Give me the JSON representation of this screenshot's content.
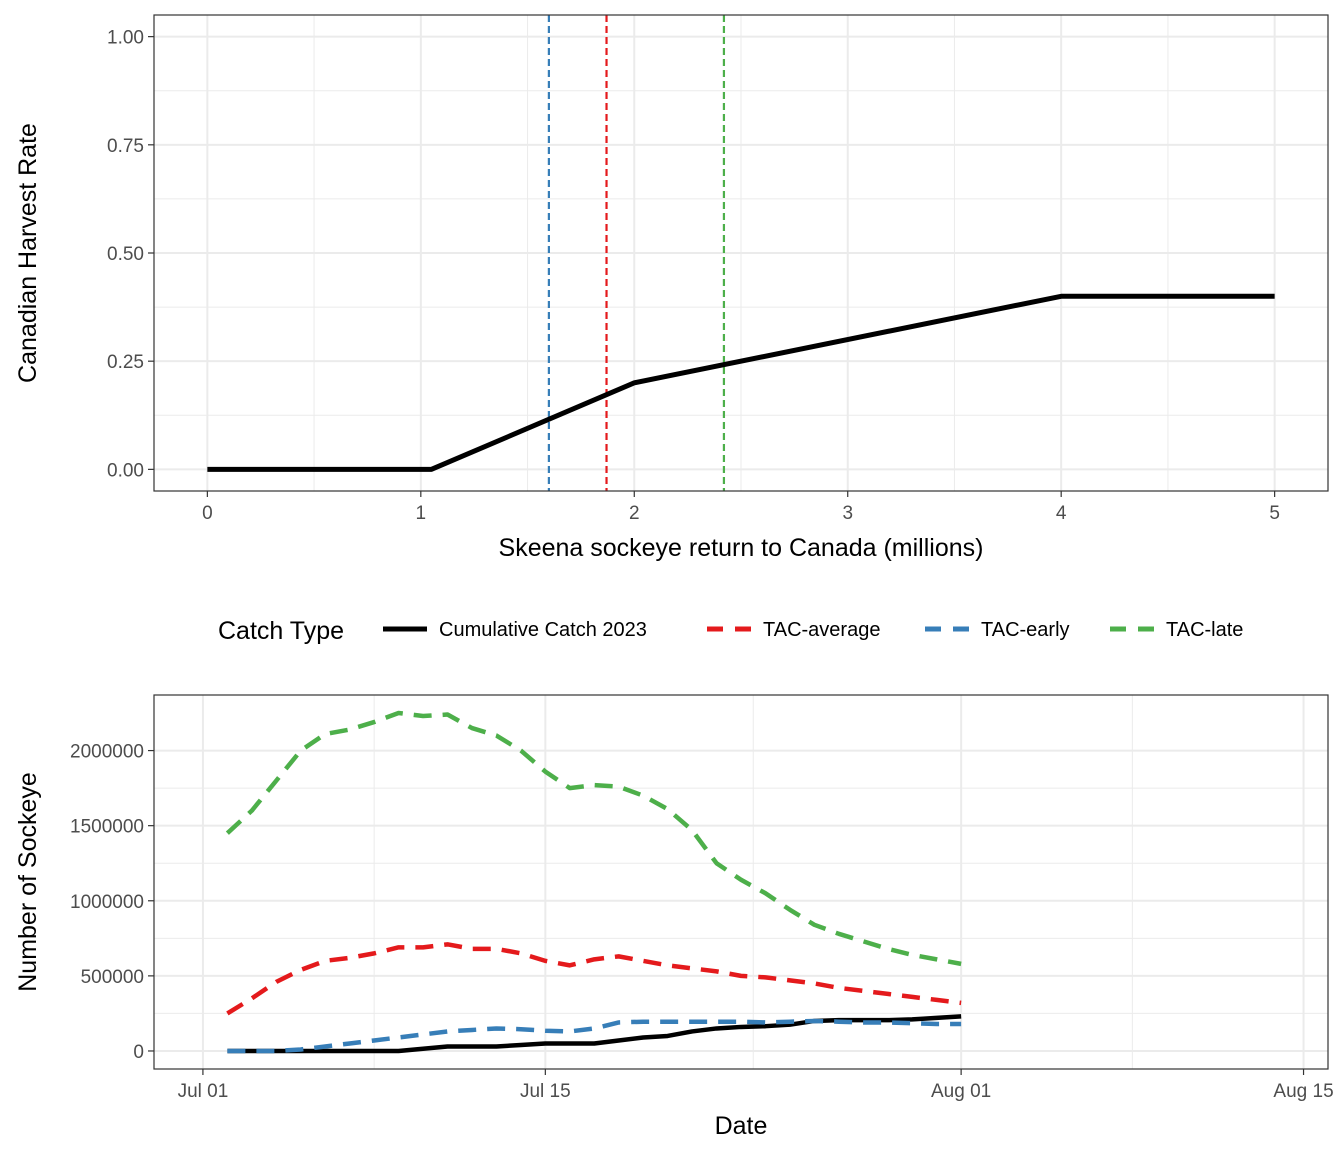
{
  "chart_data": [
    {
      "type": "line",
      "title": "",
      "xlabel": "Skeena sockeye return to Canada (millions)",
      "ylabel": "Canadian Harvest Rate",
      "xlim": [
        -0.25,
        5.25
      ],
      "ylim": [
        -0.05,
        1.05
      ],
      "x_ticks": [
        0,
        1,
        2,
        3,
        4,
        5
      ],
      "x_tick_labels": [
        "0",
        "1",
        "2",
        "3",
        "4",
        "5"
      ],
      "y_ticks": [
        0,
        0.25,
        0.5,
        0.75,
        1
      ],
      "y_tick_labels": [
        "0.00",
        "0.25",
        "0.50",
        "0.75",
        "1.00"
      ],
      "grid": true,
      "series": [
        {
          "color": "#000000",
          "x": [
            0,
            1.05,
            2,
            4,
            5
          ],
          "y": [
            0,
            0,
            0.2,
            0.4,
            0.4
          ]
        }
      ],
      "vlines": [
        {
          "x": 1.6,
          "color": "#377EB8"
        },
        {
          "x": 1.87,
          "color": "#E41A1C"
        },
        {
          "x": 2.42,
          "color": "#4DAF4A"
        }
      ]
    },
    {
      "type": "line",
      "title": "",
      "xlabel": "Date",
      "ylabel": "Number of Sockeye",
      "x_axis": "date",
      "xlim": [
        "2023-06-29",
        "2023-08-16"
      ],
      "ylim": [
        -120000,
        2370000
      ],
      "x_ticks": [
        "2023-07-01",
        "2023-07-15",
        "2023-08-01",
        "2023-08-15"
      ],
      "x_tick_labels": [
        "Jul 01",
        "Jul 15",
        "Aug 01",
        "Aug 15"
      ],
      "y_ticks": [
        0,
        500000,
        1000000,
        1500000,
        2000000
      ],
      "y_tick_labels": [
        "0",
        "500000",
        "1000000",
        "1500000",
        "2000000"
      ],
      "grid": true,
      "legend": {
        "title": "Catch Type",
        "placement": "top",
        "entries": [
          "Cumulative Catch 2023",
          "TAC-average",
          "TAC-early",
          "TAC-late"
        ]
      },
      "x": [
        "2023-07-02",
        "2023-07-03",
        "2023-07-04",
        "2023-07-05",
        "2023-07-06",
        "2023-07-07",
        "2023-07-08",
        "2023-07-09",
        "2023-07-10",
        "2023-07-11",
        "2023-07-12",
        "2023-07-13",
        "2023-07-14",
        "2023-07-15",
        "2023-07-16",
        "2023-07-17",
        "2023-07-18",
        "2023-07-19",
        "2023-07-20",
        "2023-07-21",
        "2023-07-22",
        "2023-07-23",
        "2023-07-24",
        "2023-07-25",
        "2023-07-26",
        "2023-07-27",
        "2023-07-28",
        "2023-07-29",
        "2023-07-30",
        "2023-07-31",
        "2023-08-01"
      ],
      "series": [
        {
          "name": "Cumulative Catch 2023",
          "color": "#000000",
          "dashed": false,
          "values": [
            0,
            0,
            0,
            0,
            0,
            0,
            0,
            0,
            15000,
            30000,
            30000,
            30000,
            40000,
            50000,
            50000,
            50000,
            70000,
            90000,
            100000,
            130000,
            150000,
            160000,
            165000,
            175000,
            200000,
            205000,
            205000,
            205000,
            210000,
            220000,
            230000
          ]
        },
        {
          "name": "TAC-average",
          "color": "#E41A1C",
          "dashed": true,
          "values": [
            250000,
            350000,
            460000,
            540000,
            600000,
            620000,
            650000,
            690000,
            690000,
            710000,
            680000,
            680000,
            650000,
            600000,
            570000,
            610000,
            630000,
            600000,
            570000,
            550000,
            530000,
            500000,
            490000,
            470000,
            450000,
            420000,
            400000,
            380000,
            360000,
            340000,
            320000
          ]
        },
        {
          "name": "TAC-early",
          "color": "#377EB8",
          "dashed": true,
          "values": [
            0,
            0,
            0,
            10000,
            30000,
            50000,
            70000,
            90000,
            110000,
            130000,
            140000,
            150000,
            145000,
            135000,
            130000,
            150000,
            190000,
            195000,
            195000,
            195000,
            195000,
            195000,
            190000,
            195000,
            200000,
            195000,
            190000,
            190000,
            185000,
            180000,
            180000
          ]
        },
        {
          "name": "TAC-late",
          "color": "#4DAF4A",
          "dashed": true,
          "values": [
            1450000,
            1600000,
            1800000,
            2000000,
            2110000,
            2140000,
            2190000,
            2250000,
            2230000,
            2240000,
            2150000,
            2100000,
            2000000,
            1860000,
            1750000,
            1770000,
            1760000,
            1700000,
            1610000,
            1470000,
            1250000,
            1140000,
            1050000,
            940000,
            840000,
            780000,
            730000,
            680000,
            640000,
            610000,
            580000
          ]
        }
      ]
    }
  ]
}
